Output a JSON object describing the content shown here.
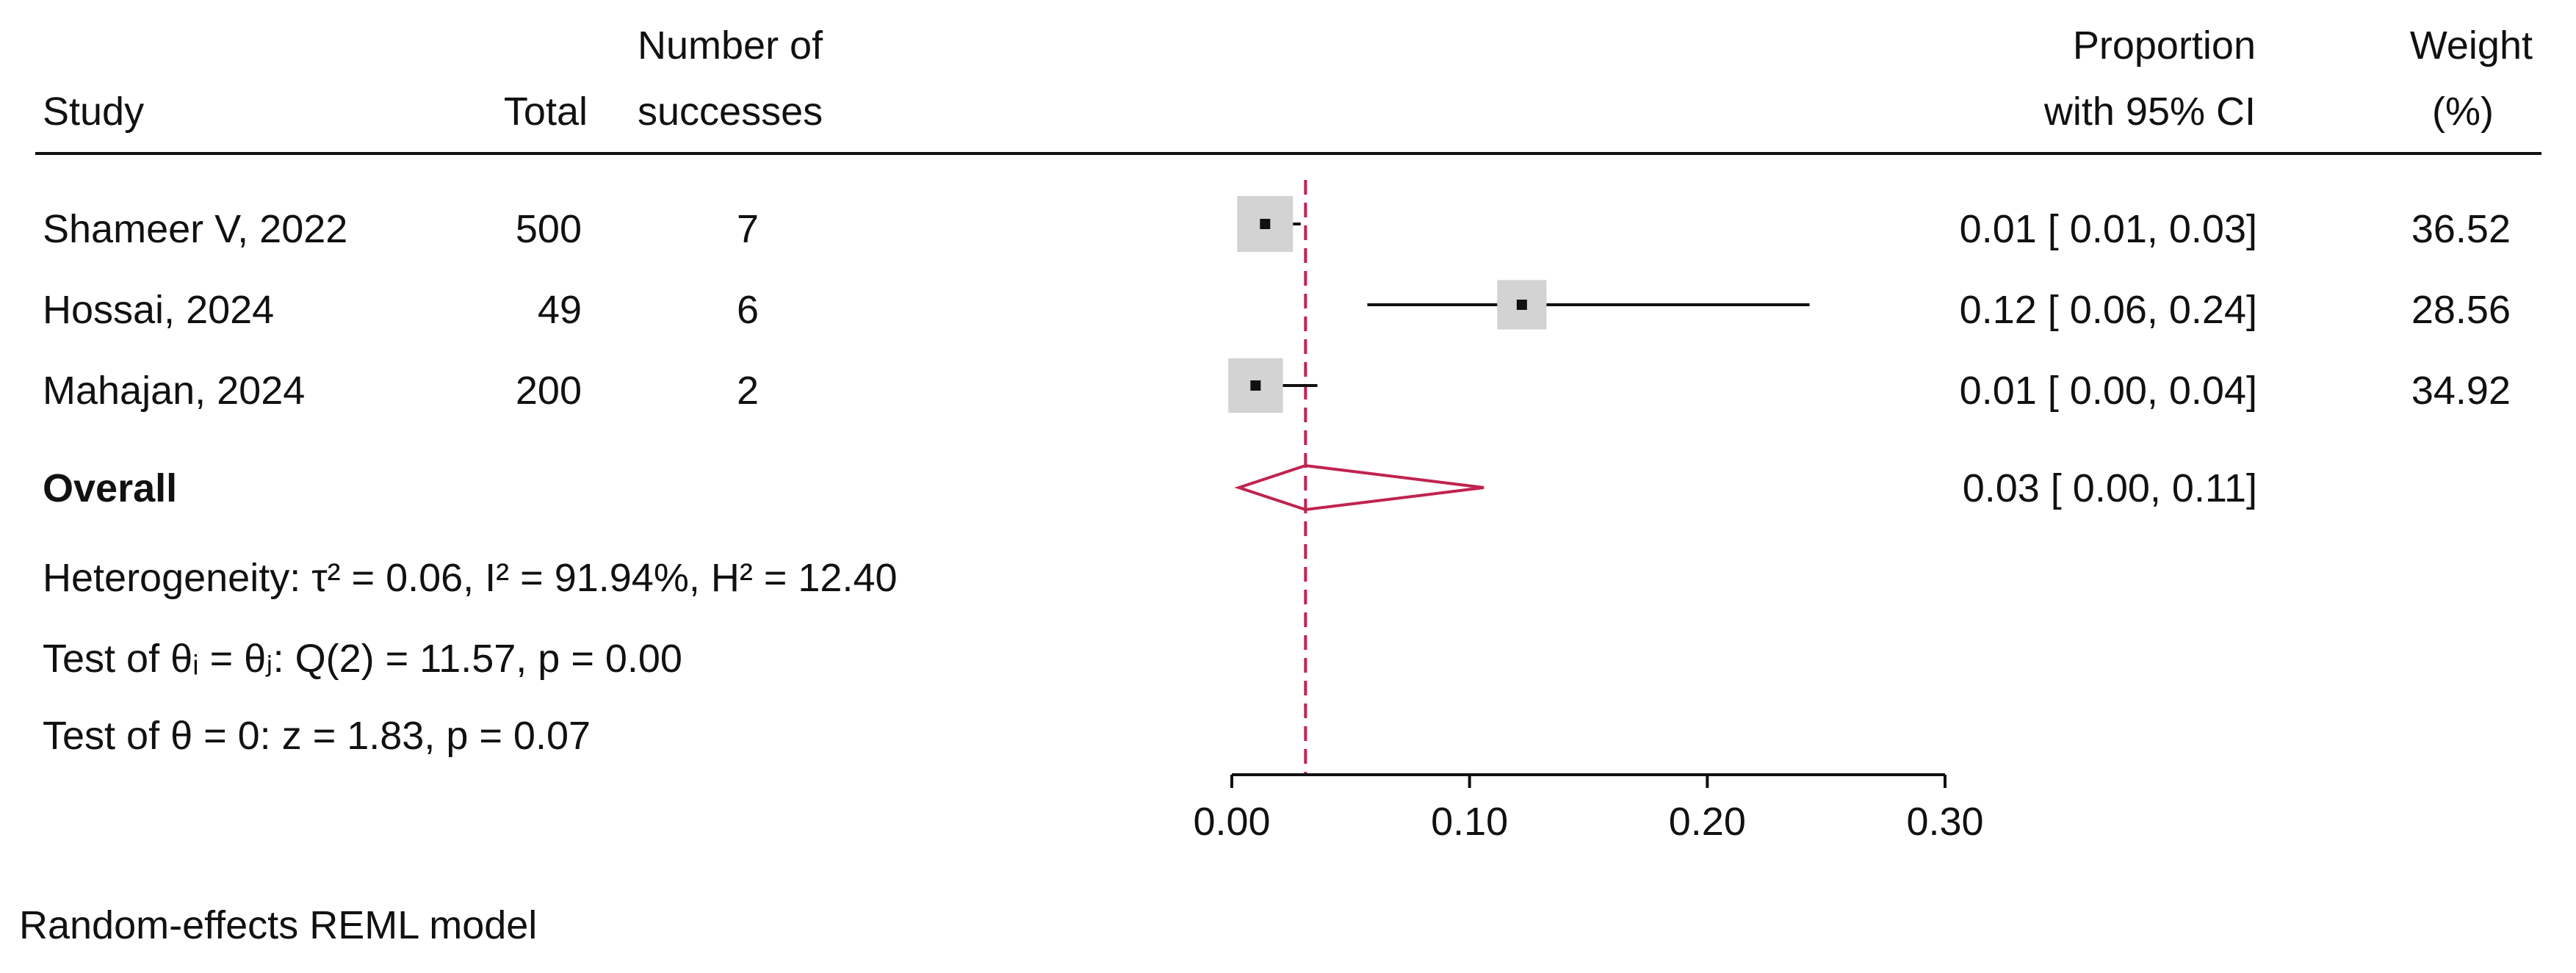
{
  "headers": {
    "study": "Study",
    "total": "Total",
    "successes_line1": "Number of",
    "successes_line2": "successes",
    "proportion_line1": "Proportion",
    "proportion_line2": "with 95% CI",
    "weight_line1": "Weight",
    "weight_line2": "(%)"
  },
  "studies": [
    {
      "label": "Shameer V, 2022",
      "total": "500",
      "successes": "7",
      "ci_text": "0.01 [ 0.01,  0.03]",
      "weight_text": "36.52"
    },
    {
      "label": "Hossai, 2024",
      "total": "49",
      "successes": "6",
      "ci_text": "0.12 [ 0.06,  0.24]",
      "weight_text": "28.56"
    },
    {
      "label": "Mahajan, 2024",
      "total": "200",
      "successes": "2",
      "ci_text": "0.01 [ 0.00,  0.04]",
      "weight_text": "34.92"
    }
  ],
  "overall": {
    "label": "Overall",
    "ci_text": "0.03 [ 0.00,  0.11]"
  },
  "stats": {
    "heterogeneity": "Heterogeneity: τ² = 0.06, I² = 91.94%, H² = 12.40",
    "test_thetas": "Test of θᵢ = θⱼ: Q(2) = 11.57, p = 0.00",
    "test_zero": "Test of θ = 0: z = 1.83, p = 0.07"
  },
  "footnote": "Random-effects REML model",
  "colors": {
    "overall": "#c0234e",
    "box": "#d3d3d3",
    "ink": "#111111"
  },
  "chart_data": {
    "type": "forest",
    "x_ticks": [
      "0.00",
      "0.10",
      "0.20",
      "0.30"
    ],
    "xlim": [
      0,
      0.3
    ],
    "reference_line": 0.031,
    "studies": [
      {
        "name": "Shameer V, 2022",
        "estimate": 0.014,
        "lower": 0.007,
        "upper": 0.029,
        "weight": 36.52
      },
      {
        "name": "Hossai, 2024",
        "estimate": 0.122,
        "lower": 0.057,
        "upper": 0.243,
        "weight": 28.56
      },
      {
        "name": "Mahajan, 2024",
        "estimate": 0.01,
        "lower": 0.003,
        "upper": 0.036,
        "weight": 34.92
      }
    ],
    "overall": {
      "estimate": 0.031,
      "lower": 0.003,
      "upper": 0.106
    }
  }
}
